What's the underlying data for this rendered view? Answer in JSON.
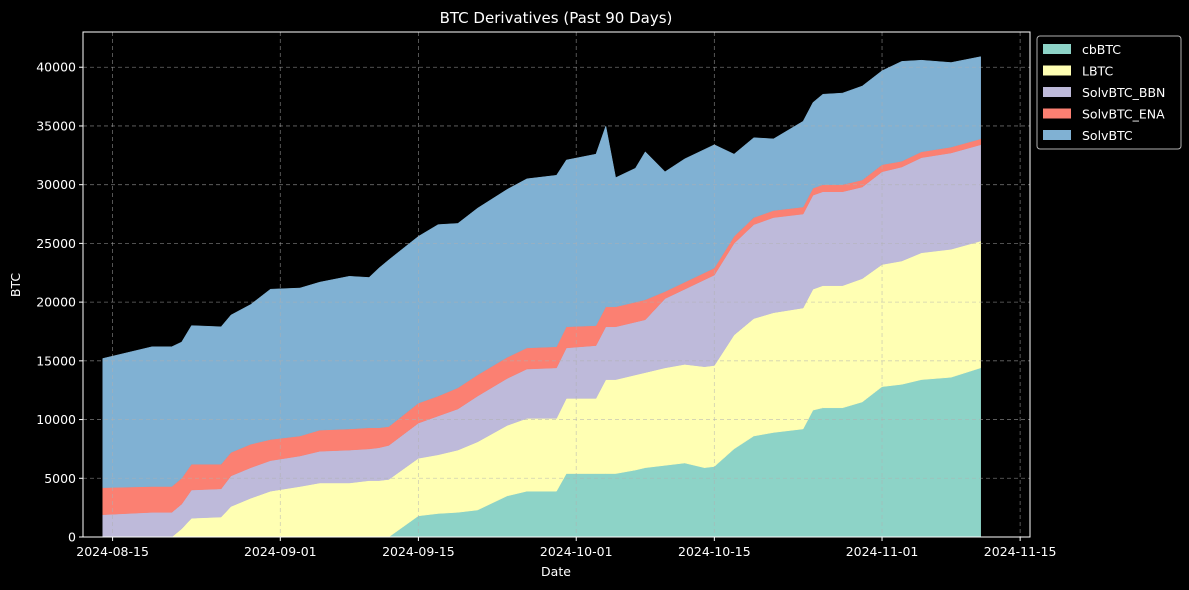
{
  "chart_data": {
    "type": "area",
    "stacked": true,
    "title": "BTC Derivatives (Past 90 Days)",
    "xlabel": "Date",
    "ylabel": "BTC",
    "xlim": [
      "2024-08-12",
      "2024-11-16"
    ],
    "ylim": [
      0,
      43000
    ],
    "x_ticks": [
      "2024-08-15",
      "2024-09-01",
      "2024-09-15",
      "2024-10-01",
      "2024-10-15",
      "2024-11-01",
      "2024-11-15"
    ],
    "y_ticks": [
      0,
      5000,
      10000,
      15000,
      20000,
      25000,
      30000,
      35000,
      40000
    ],
    "grid": true,
    "legend_position": "outside-top-right",
    "background": "#000000",
    "x": [
      "2024-08-14",
      "2024-08-19",
      "2024-08-21",
      "2024-08-22",
      "2024-08-23",
      "2024-08-26",
      "2024-08-27",
      "2024-08-29",
      "2024-08-31",
      "2024-09-03",
      "2024-09-05",
      "2024-09-08",
      "2024-09-10",
      "2024-09-11",
      "2024-09-12",
      "2024-09-15",
      "2024-09-17",
      "2024-09-19",
      "2024-09-21",
      "2024-09-24",
      "2024-09-26",
      "2024-09-29",
      "2024-09-30",
      "2024-10-03",
      "2024-10-04",
      "2024-10-05",
      "2024-10-07",
      "2024-10-08",
      "2024-10-10",
      "2024-10-12",
      "2024-10-14",
      "2024-10-15",
      "2024-10-17",
      "2024-10-19",
      "2024-10-21",
      "2024-10-24",
      "2024-10-25",
      "2024-10-26",
      "2024-10-28",
      "2024-10-30",
      "2024-11-01",
      "2024-11-03",
      "2024-11-05",
      "2024-11-08",
      "2024-11-11"
    ],
    "series": [
      {
        "name": "cbBTC",
        "color": "#8dd3c7",
        "values": [
          0,
          0,
          0,
          0,
          0,
          0,
          0,
          0,
          0,
          0,
          0,
          0,
          0,
          0,
          0,
          1800,
          2000,
          2100,
          2300,
          3500,
          3900,
          3900,
          5400,
          5400,
          5400,
          5400,
          5700,
          5900,
          6100,
          6300,
          5900,
          6000,
          7500,
          8600,
          8900,
          9200,
          10800,
          11000,
          11000,
          11500,
          12800,
          13000,
          13400,
          13600,
          14400
        ]
      },
      {
        "name": "LBTC",
        "color": "#ffffb3",
        "values": [
          0,
          0,
          0,
          700,
          1600,
          1700,
          2600,
          3300,
          3900,
          4300,
          4600,
          4600,
          4800,
          4800,
          4900,
          4900,
          5000,
          5300,
          5800,
          6000,
          6200,
          6200,
          6400,
          6400,
          8000,
          8000,
          8100,
          8100,
          8300,
          8400,
          8600,
          8600,
          9700,
          10000,
          10200,
          10300,
          10300,
          10400,
          10400,
          10500,
          10400,
          10500,
          10800,
          10900,
          10800
        ]
      },
      {
        "name": "SolvBTC_BBN",
        "color": "#bebada",
        "values": [
          1900,
          2100,
          2100,
          2100,
          2400,
          2400,
          2600,
          2600,
          2600,
          2600,
          2700,
          2800,
          2700,
          2800,
          2900,
          3000,
          3300,
          3500,
          3900,
          4000,
          4200,
          4300,
          4300,
          4500,
          4500,
          4500,
          4500,
          4500,
          5900,
          6400,
          7400,
          7700,
          7800,
          8000,
          8100,
          8000,
          8000,
          8000,
          8000,
          7800,
          7900,
          8000,
          8100,
          8200,
          8200
        ]
      },
      {
        "name": "SolvBTC_ENA",
        "color": "#fb8072",
        "values": [
          2300,
          2200,
          2200,
          2200,
          2200,
          2100,
          2000,
          2000,
          1800,
          1700,
          1800,
          1800,
          1800,
          1700,
          1600,
          1700,
          1700,
          1800,
          1800,
          1800,
          1800,
          1800,
          1800,
          1700,
          1700,
          1700,
          1700,
          1700,
          600,
          600,
          600,
          600,
          600,
          600,
          600,
          600,
          600,
          600,
          600,
          600,
          600,
          500,
          500,
          500,
          500
        ]
      },
      {
        "name": "SolvBTC",
        "color": "#80b1d3",
        "values": [
          11000,
          11900,
          11900,
          11600,
          11800,
          11700,
          11700,
          11900,
          12800,
          12600,
          12600,
          13000,
          12800,
          13600,
          14200,
          14200,
          14600,
          14000,
          14200,
          14300,
          14400,
          14600,
          14200,
          14600,
          15400,
          11000,
          11400,
          12600,
          10200,
          10500,
          10500,
          10500,
          7000,
          6800,
          6100,
          7300,
          7300,
          7700,
          7800,
          8000,
          8000,
          8500,
          7800,
          7200,
          7000
        ]
      }
    ]
  }
}
